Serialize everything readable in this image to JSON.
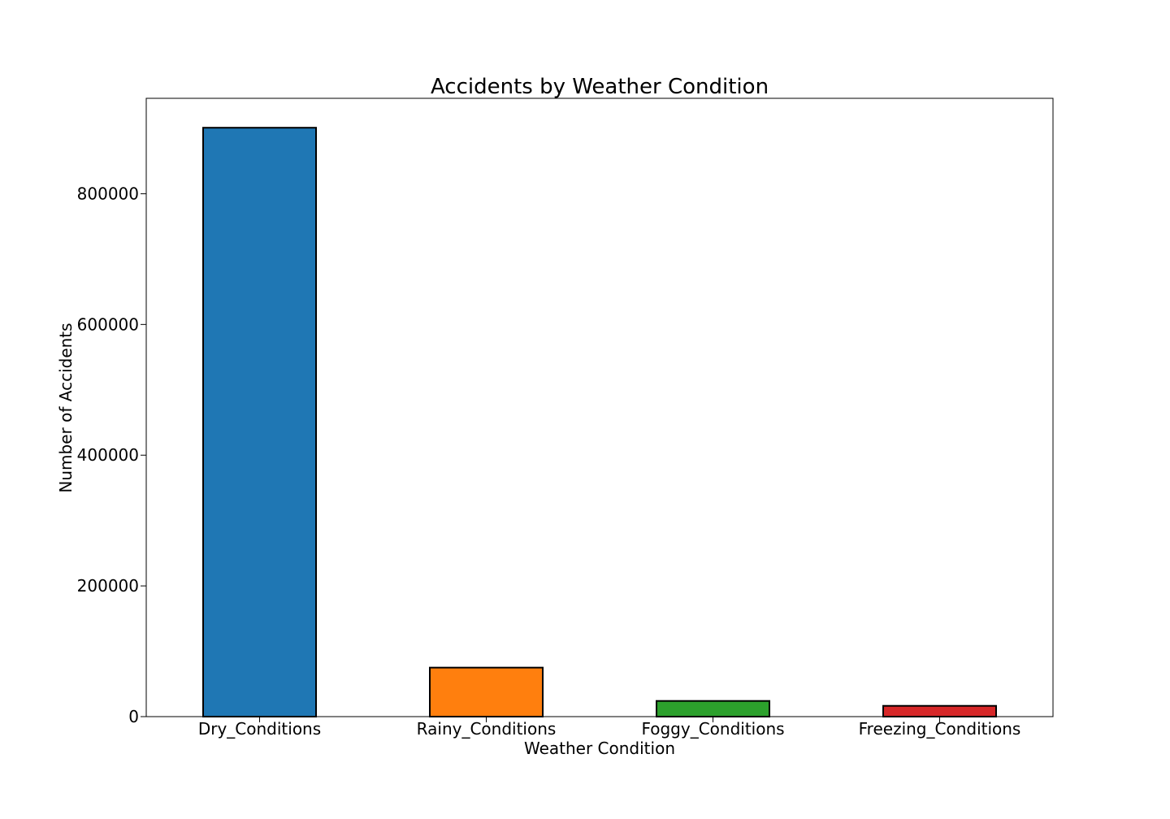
{
  "chart_data": {
    "type": "bar",
    "title": "Accidents by Weather Condition",
    "xlabel": "Weather Condition",
    "ylabel": "Number of Accidents",
    "categories": [
      "Dry_Conditions",
      "Rainy_Conditions",
      "Foggy_Conditions",
      "Freezing_Conditions"
    ],
    "values": [
      901000,
      75000,
      24000,
      16500
    ],
    "colors": [
      "#1f77b4",
      "#ff7f0e",
      "#2ca02c",
      "#d62728"
    ],
    "edge_color": "#000000",
    "yticks": [
      0,
      200000,
      400000,
      600000,
      800000
    ],
    "ytick_labels": [
      "0",
      "200000",
      "400000",
      "600000",
      "800000"
    ],
    "ylim": [
      0,
      946000
    ],
    "grid": false,
    "legend": "none"
  }
}
